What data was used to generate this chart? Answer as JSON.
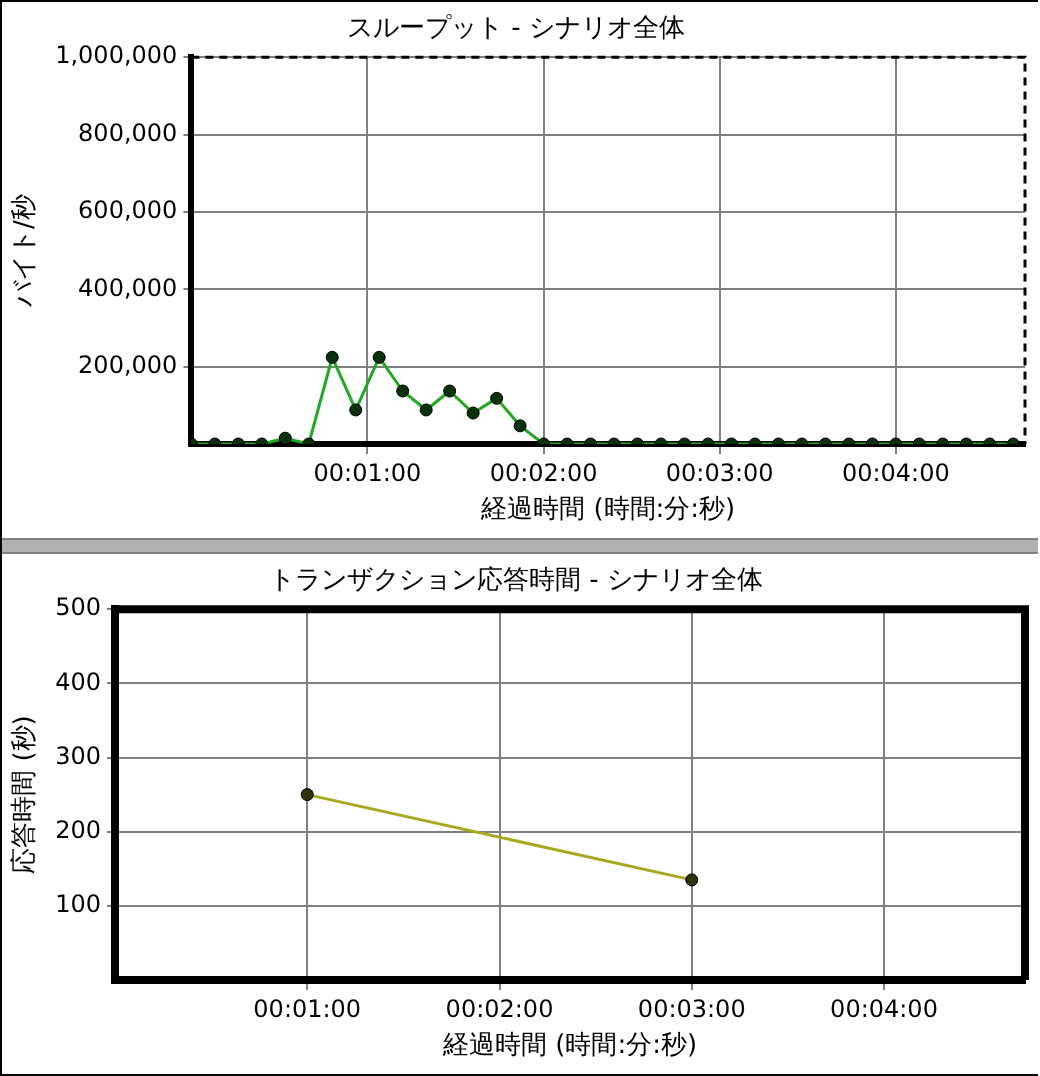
{
  "chart_data": [
    {
      "type": "line",
      "title": "スループット - シナリオ全体",
      "xlabel": "経過時間 (時間:分:秒)",
      "ylabel": "バイト/秒",
      "series": [
        {
          "color": "#22a822",
          "x": [
            0,
            8,
            16,
            24,
            32,
            40,
            48,
            56,
            64,
            72,
            80,
            88,
            96,
            104,
            112,
            120,
            128,
            136,
            144,
            152,
            160,
            168,
            176,
            184,
            192,
            200,
            208,
            216,
            224,
            232,
            240,
            248,
            256,
            264,
            272,
            280
          ],
          "values": [
            0,
            0,
            0,
            0,
            15000,
            0,
            224000,
            88000,
            224000,
            137000,
            88000,
            137000,
            80000,
            118000,
            47000,
            0,
            0,
            0,
            0,
            0,
            0,
            0,
            0,
            0,
            0,
            0,
            0,
            0,
            0,
            0,
            0,
            0,
            0,
            0,
            0,
            0
          ]
        }
      ],
      "xlim": [
        0,
        284
      ],
      "xticks": [
        {
          "value": 60,
          "label": "00:01:00"
        },
        {
          "value": 120,
          "label": "00:02:00"
        },
        {
          "value": 180,
          "label": "00:03:00"
        },
        {
          "value": 240,
          "label": "00:04:00"
        }
      ],
      "ylim": [
        0,
        1000000
      ],
      "yticks": [
        {
          "value": 200000,
          "label": "200,000"
        },
        {
          "value": 400000,
          "label": "400,000"
        },
        {
          "value": 600000,
          "label": "600,000"
        },
        {
          "value": 800000,
          "label": "800,000"
        },
        {
          "value": 1000000,
          "label": "1,000,000"
        }
      ],
      "grid": true,
      "legend": false,
      "marker": "circle",
      "line_style": "solid"
    },
    {
      "type": "line",
      "title": "トランザクション応答時間 - シナリオ全体",
      "xlabel": "経過時間 (時間:分:秒)",
      "ylabel": "応答時間 (秒)",
      "series": [
        {
          "color": "#a8a820",
          "x": [
            60,
            180
          ],
          "values": [
            250,
            135
          ]
        }
      ],
      "xlim": [
        0,
        284
      ],
      "xticks": [
        {
          "value": 60,
          "label": "00:01:00"
        },
        {
          "value": 120,
          "label": "00:02:00"
        },
        {
          "value": 180,
          "label": "00:03:00"
        },
        {
          "value": 240,
          "label": "00:04:00"
        }
      ],
      "ylim": [
        0,
        500
      ],
      "yticks": [
        100,
        200,
        300,
        400,
        500
      ],
      "grid": true,
      "legend": false,
      "marker": "circle",
      "line_style": "solid"
    }
  ]
}
